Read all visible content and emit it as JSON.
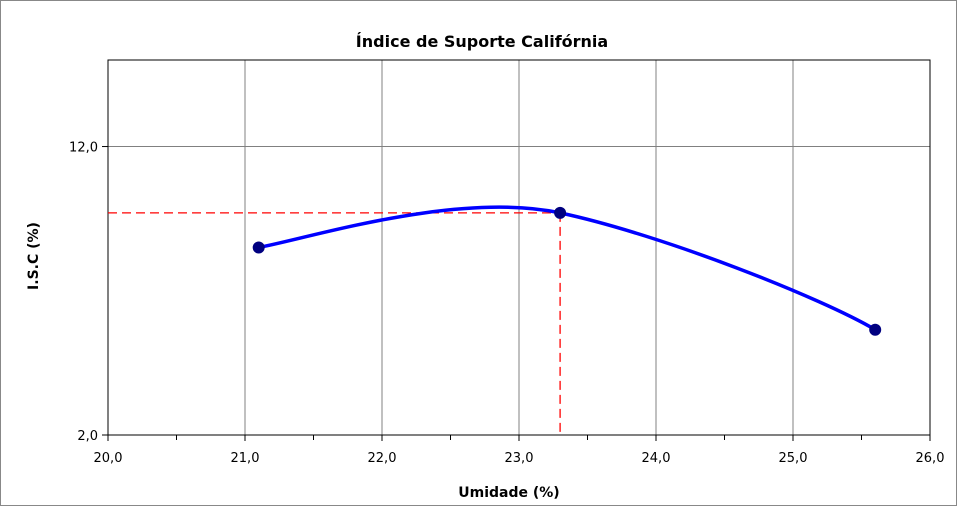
{
  "chart_data": {
    "type": "line",
    "title": "Índice de Suporte Califórnia",
    "xlabel": "Umidade (%)",
    "ylabel": "I.S.C (%)",
    "xlim": [
      20.0,
      26.0
    ],
    "ylim": [
      2.0,
      15.0
    ],
    "x_ticks": [
      "20,0",
      "21,0",
      "22,0",
      "23,0",
      "24,0",
      "25,0",
      "26,0"
    ],
    "x_tick_values": [
      20,
      21,
      22,
      23,
      24,
      25,
      26
    ],
    "y_ticks": [
      "2,0",
      "12,0"
    ],
    "y_tick_values": [
      2,
      12
    ],
    "grid": true,
    "series": [
      {
        "points": [
          {
            "x": 21.1,
            "y": 8.5
          },
          {
            "x": 23.3,
            "y": 9.7
          },
          {
            "x": 25.6,
            "y": 5.65
          }
        ],
        "color": "#0000ff",
        "marker_color": "#000080"
      }
    ],
    "reference": {
      "x": 23.3,
      "y": 9.7,
      "color": "#ff0000",
      "style": "dashed"
    }
  }
}
